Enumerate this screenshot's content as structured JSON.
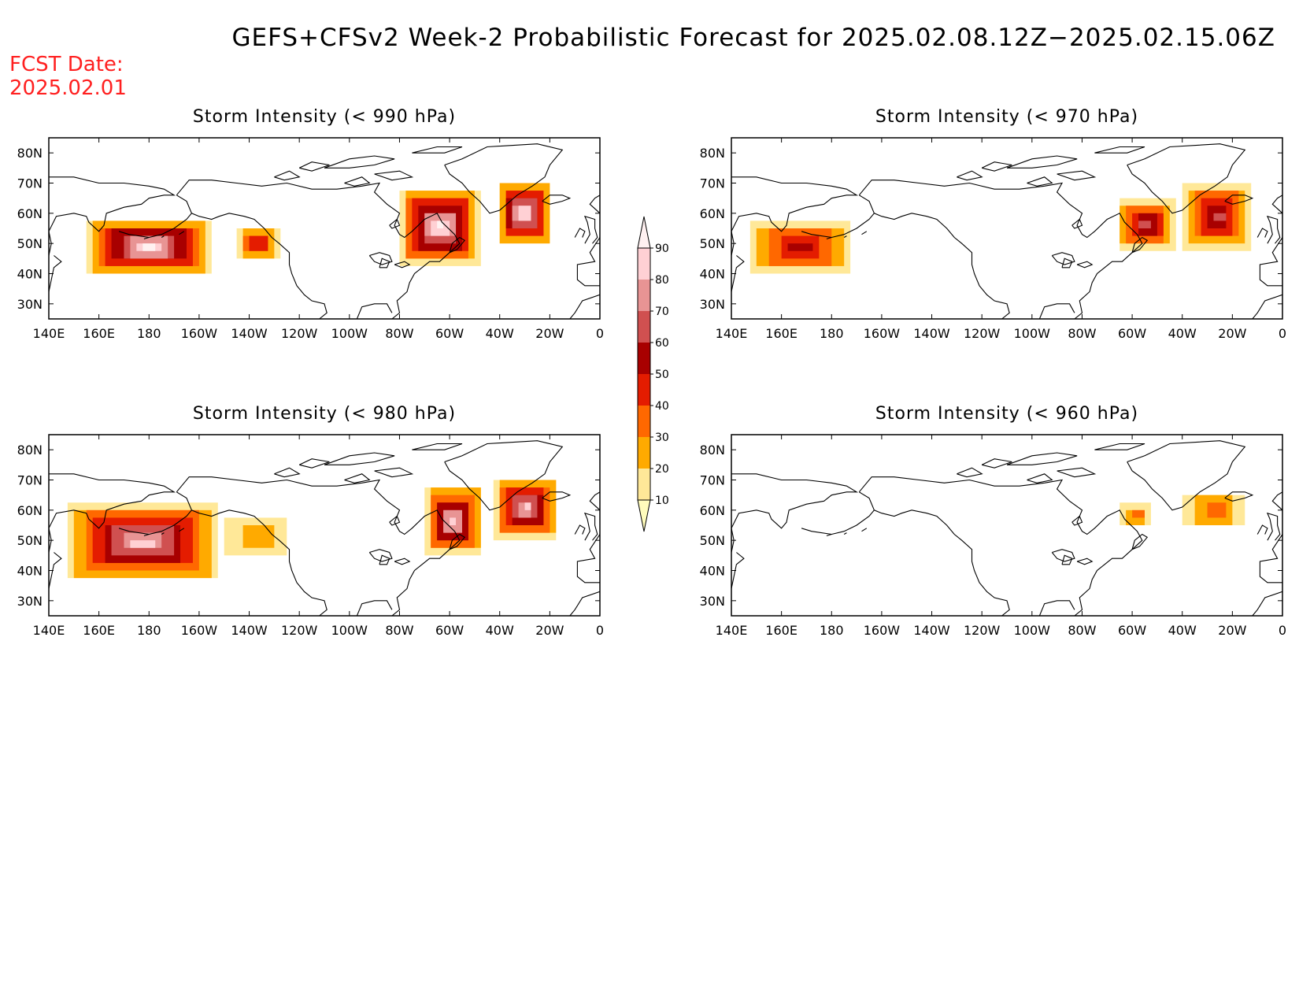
{
  "title": "GEFS+CFSv2 Week-2 Probabilistic Forecast for 2025.02.08.12Z−2025.02.15.06Z",
  "fcst_date_label": "FCST Date:",
  "fcst_date_value": "2025.02.01",
  "lat_labels": [
    "80N",
    "70N",
    "60N",
    "50N",
    "40N",
    "30N"
  ],
  "lon_labels": [
    "140E",
    "160E",
    "180",
    "160W",
    "140W",
    "120W",
    "100W",
    "80W",
    "60W",
    "40W",
    "20W",
    "0"
  ],
  "panels": [
    {
      "id": "p990",
      "title": "Storm Intensity (< 990 hPa)",
      "blobs": [
        {
          "region": "North Pacific",
          "lon": [
            155,
            205
          ],
          "lat": [
            40,
            58
          ],
          "peak_prob": 90
        },
        {
          "region": "Gulf of Alaska",
          "lon": [
            215,
            232
          ],
          "lat": [
            45,
            55
          ],
          "peak_prob": 50
        },
        {
          "region": "Labrador Sea / Newfoundland",
          "lon": [
            280,
            312
          ],
          "lat": [
            43,
            68
          ],
          "peak_prob": 90
        },
        {
          "region": "Northeast Atlantic",
          "lon": [
            319,
            340
          ],
          "lat": [
            50,
            70
          ],
          "peak_prob": 90
        }
      ]
    },
    {
      "id": "p970",
      "title": "Storm Intensity (< 970 hPa)",
      "blobs": [
        {
          "region": "North Pacific",
          "lon": [
            147,
            188
          ],
          "lat": [
            40,
            58
          ],
          "peak_prob": 50
        },
        {
          "region": "Labrador Sea",
          "lon": [
            294,
            317
          ],
          "lat": [
            48,
            65
          ],
          "peak_prob": 60
        },
        {
          "region": "Northeast Atlantic",
          "lon": [
            320,
            348
          ],
          "lat": [
            48,
            70
          ],
          "peak_prob": 60
        }
      ]
    },
    {
      "id": "p980",
      "title": "Storm Intensity (< 980 hPa)",
      "blobs": [
        {
          "region": "North Pacific",
          "lon": [
            147,
            208
          ],
          "lat": [
            37,
            62
          ],
          "peak_prob": 80
        },
        {
          "region": "Gulf of Alaska",
          "lon": [
            210,
            235
          ],
          "lat": [
            45,
            57
          ],
          "peak_prob": 20
        },
        {
          "region": "Labrador Sea / Newfoundland",
          "lon": [
            290,
            313
          ],
          "lat": [
            45,
            68
          ],
          "peak_prob": 80
        },
        {
          "region": "Northeast Atlantic",
          "lon": [
            318,
            343
          ],
          "lat": [
            50,
            70
          ],
          "peak_prob": 80
        }
      ]
    },
    {
      "id": "p960",
      "title": "Storm Intensity (< 960 hPa)",
      "blobs": [
        {
          "region": "Labrador Sea",
          "lon": [
            296,
            308
          ],
          "lat": [
            54,
            62
          ],
          "peak_prob": 30
        },
        {
          "region": "Northeast Atlantic",
          "lon": [
            321,
            345
          ],
          "lat": [
            54,
            66
          ],
          "peak_prob": 30
        }
      ]
    }
  ],
  "colorbar": {
    "levels": [
      10,
      20,
      30,
      40,
      50,
      60,
      70,
      80,
      90
    ],
    "colors": [
      "#fffcbc",
      "#ffe898",
      "#ffaa00",
      "#ff6800",
      "#e41c00",
      "#a80000",
      "#d05050",
      "#e89494",
      "#ffd0d4",
      "#fff1f1"
    ]
  },
  "colors": {
    "title": "#000000",
    "fcst_date": "#ff2020",
    "coastline": "#000000"
  }
}
